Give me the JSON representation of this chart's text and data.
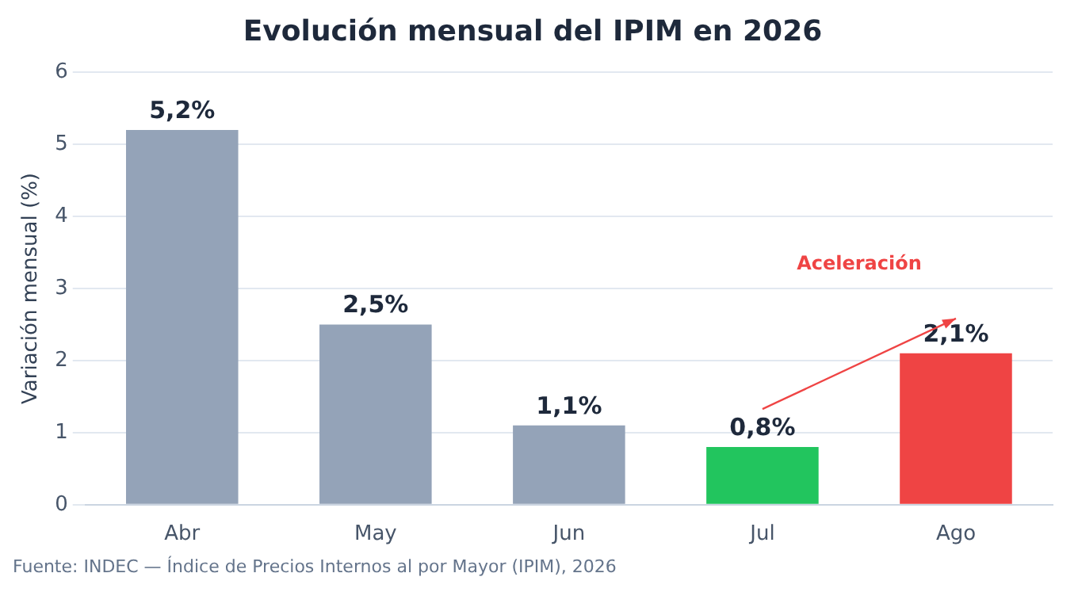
{
  "chart_data": {
    "type": "bar",
    "title": "Evolución mensual del IPIM en 2026",
    "ylabel": "Variación mensual (%)",
    "categories": [
      "Abr",
      "May",
      "Jun",
      "Jul",
      "Ago"
    ],
    "values": [
      5.2,
      2.5,
      1.1,
      0.8,
      2.1
    ],
    "colors": [
      "#94a3b8",
      "#94a3b8",
      "#94a3b8",
      "#22c55e",
      "#ef4444"
    ],
    "value_labels": [
      "5,2%",
      "2,5%",
      "1,1%",
      "0,8%",
      "2,1%"
    ],
    "ylim": [
      0,
      6
    ],
    "yticks": [
      0,
      1,
      2,
      3,
      4,
      5,
      6
    ],
    "grid": "y",
    "legend": false,
    "annotations": [
      "Aceleración",
      "Fuente: INDEC — Índice de Precios Internos al por Mayor (IPIM), 2026"
    ]
  }
}
